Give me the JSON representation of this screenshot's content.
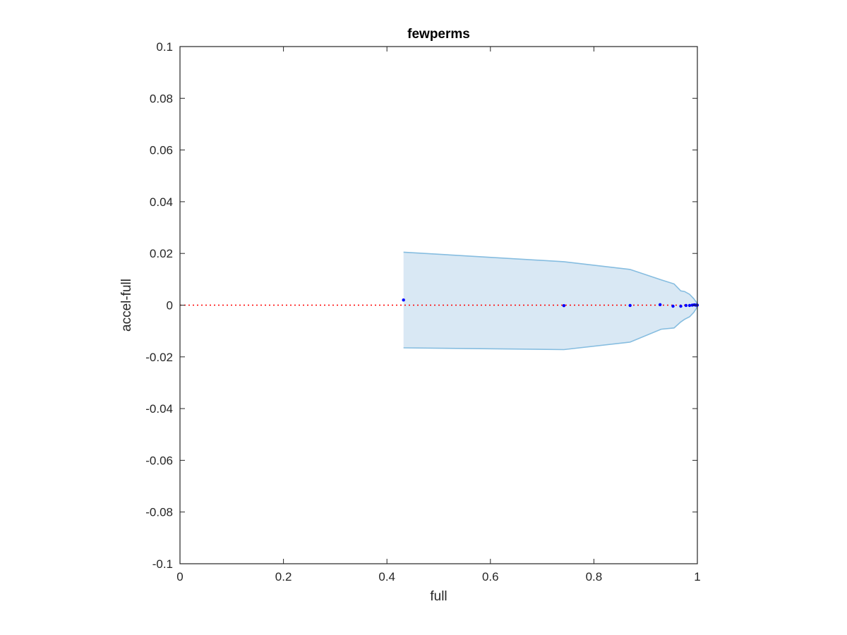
{
  "chart_data": {
    "type": "area",
    "title": "fewperms",
    "xlabel": "full",
    "ylabel": "accel-full",
    "xlim": [
      0,
      1
    ],
    "ylim": [
      -0.1,
      0.1
    ],
    "grid": false,
    "x_ticks": [
      "0",
      "0.2",
      "0.4",
      "0.6",
      "0.8",
      "1"
    ],
    "y_ticks": [
      "0.1",
      "0.08",
      "0.06",
      "0.04",
      "0.02",
      "0",
      "-0.02",
      "-0.04",
      "-0.06",
      "-0.08",
      "-0.1"
    ],
    "reference_line": {
      "y": 0,
      "color": "#ff0000",
      "style": "dotted"
    },
    "band": {
      "fill_color": "#d9e8f4",
      "edge_color": "#86bde0",
      "upper": [
        [
          0.432,
          0.0205
        ],
        [
          0.742,
          0.0168
        ],
        [
          0.87,
          0.0138
        ],
        [
          0.93,
          0.0098
        ],
        [
          0.955,
          0.0082
        ],
        [
          0.968,
          0.0055
        ],
        [
          0.975,
          0.0053
        ],
        [
          0.985,
          0.0042
        ],
        [
          0.993,
          0.0025
        ],
        [
          0.998,
          0.0012
        ],
        [
          1.0,
          0.0
        ]
      ],
      "lower": [
        [
          0.432,
          -0.0165
        ],
        [
          0.742,
          -0.0172
        ],
        [
          0.87,
          -0.0143
        ],
        [
          0.93,
          -0.0093
        ],
        [
          0.955,
          -0.0088
        ],
        [
          0.968,
          -0.0065
        ],
        [
          0.975,
          -0.0055
        ],
        [
          0.985,
          -0.0045
        ],
        [
          0.993,
          -0.0028
        ],
        [
          0.998,
          -0.0013
        ],
        [
          1.0,
          0.0
        ]
      ]
    },
    "points": {
      "color": "#0000ff",
      "x": [
        0.432,
        0.742,
        0.87,
        0.928,
        0.953,
        0.968,
        0.978,
        0.985,
        0.99,
        0.994,
        0.997,
        0.999,
        1.0
      ],
      "y": [
        0.002,
        -0.0002,
        -0.0001,
        0.0002,
        -0.0004,
        -0.0004,
        -0.0001,
        -0.0001,
        0.0,
        0.0001,
        0.0,
        0.0,
        0.0
      ]
    }
  }
}
